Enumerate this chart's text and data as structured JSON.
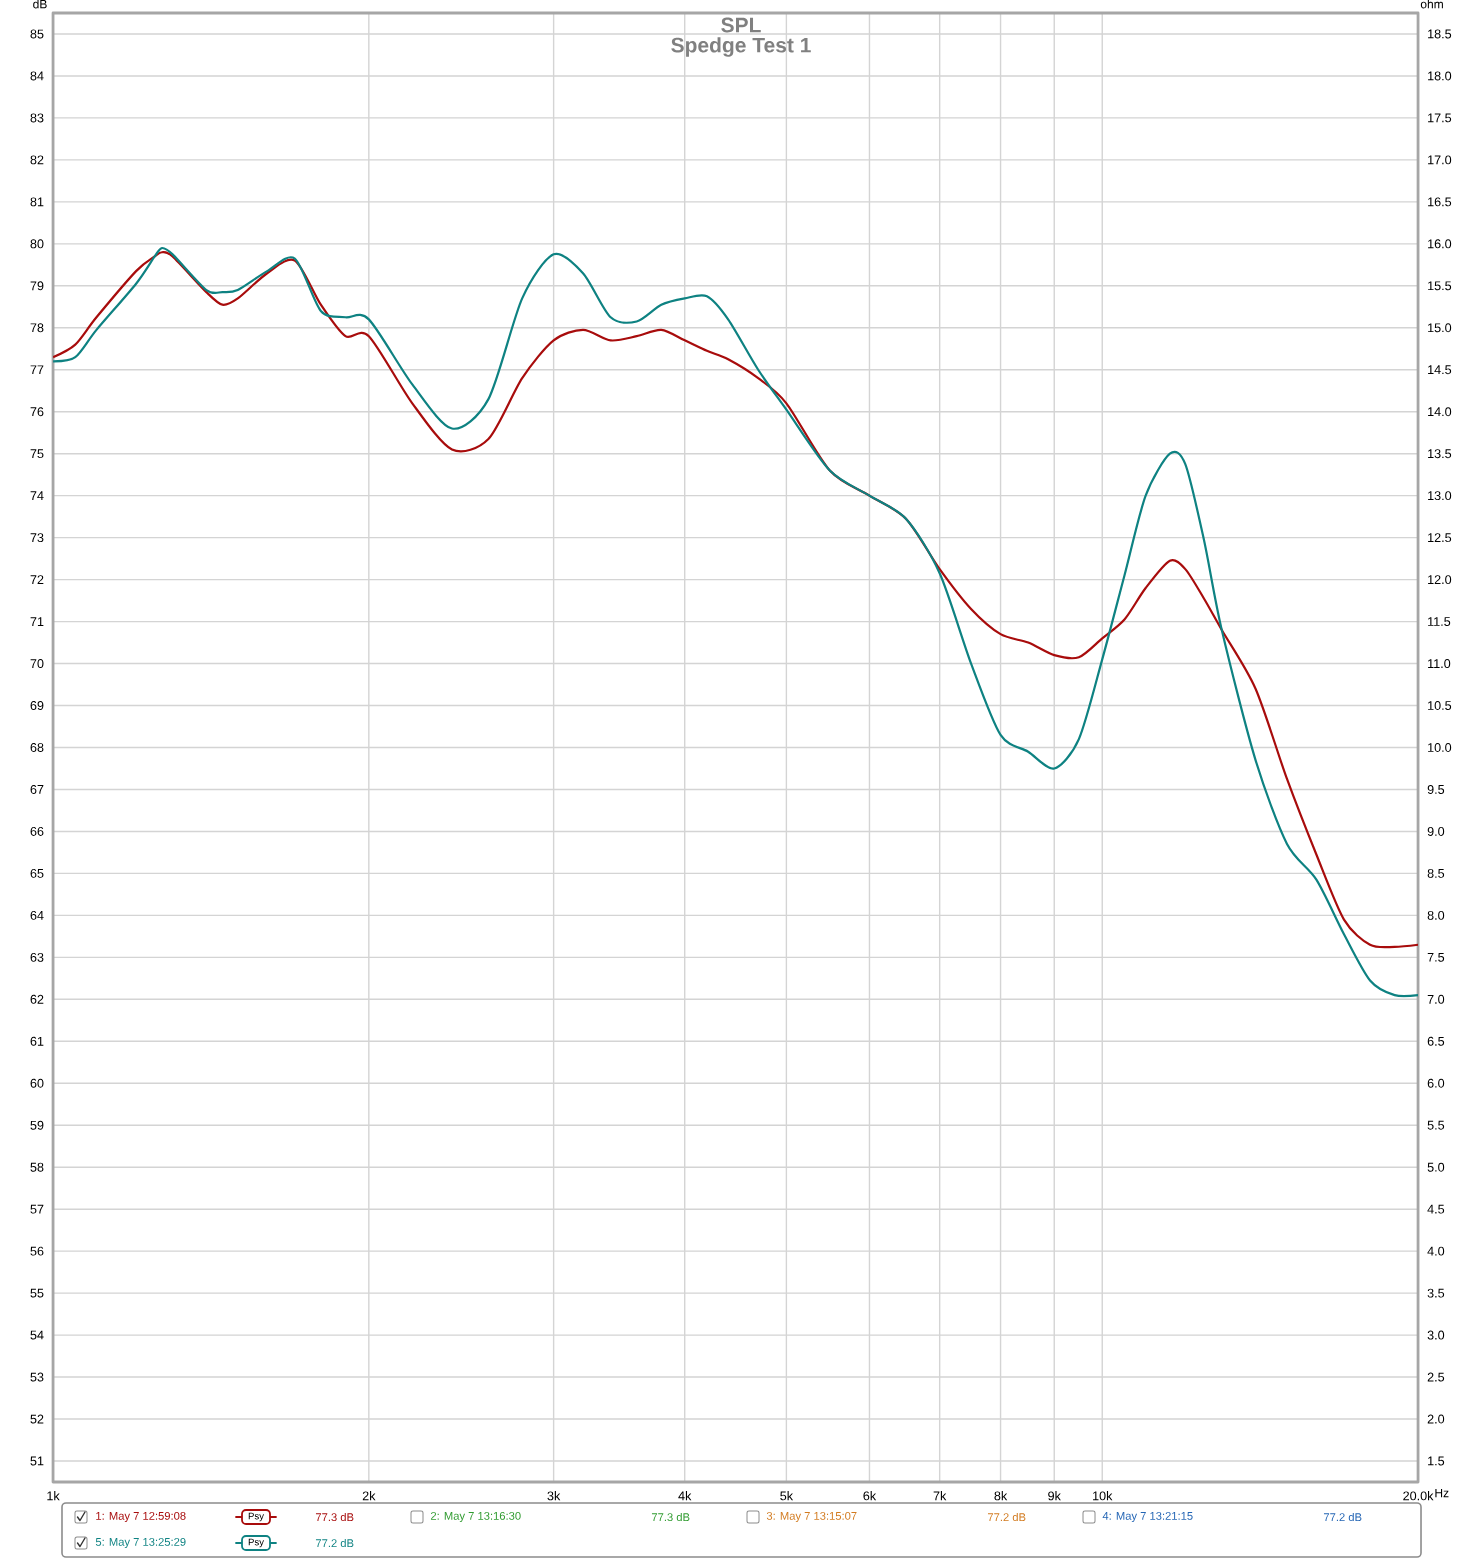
{
  "chart_data": {
    "type": "line",
    "title": "SPL",
    "subtitle": "Spedge Test 1",
    "ylabel": "dB",
    "y2label": "ohm",
    "log": "x",
    "grid": true,
    "legend": "bottom",
    "marker": "none",
    "line_style": "solid",
    "x": [
      1000,
      1050,
      1100,
      1200,
      1250,
      1270,
      1300,
      1400,
      1450,
      1500,
      1600,
      1700,
      1800,
      1900,
      2000,
      2200,
      2400,
      2600,
      2800,
      3000,
      3200,
      3400,
      3600,
      3800,
      4000,
      4200,
      4400,
      4700,
      5000,
      5500,
      6000,
      6500,
      7000,
      7500,
      8000,
      8500,
      9000,
      9500,
      10000,
      10500,
      11000,
      11600,
      12000,
      12500,
      13000,
      14000,
      15000,
      16000,
      17000,
      18000,
      19000,
      20000
    ],
    "xlim": [
      1000,
      20000
    ],
    "xticks": [
      {
        "value": 1000,
        "label": "1k"
      },
      {
        "value": 2000,
        "label": "2k"
      },
      {
        "value": 3000,
        "label": "3k"
      },
      {
        "value": 4000,
        "label": "4k"
      },
      {
        "value": 5000,
        "label": "5k"
      },
      {
        "value": 6000,
        "label": "6k"
      },
      {
        "value": 7000,
        "label": "7k"
      },
      {
        "value": 8000,
        "label": "8k"
      },
      {
        "value": 9000,
        "label": "9k"
      },
      {
        "value": 10000,
        "label": "10k"
      },
      {
        "value": 20000,
        "label": "20.0k"
      }
    ],
    "xlabel": "Hz",
    "ylim": [
      50.5,
      85.5
    ],
    "yticks": [
      51,
      52,
      53,
      54,
      55,
      56,
      57,
      58,
      59,
      60,
      61,
      62,
      63,
      64,
      65,
      66,
      67,
      68,
      69,
      70,
      71,
      72,
      73,
      74,
      75,
      76,
      77,
      78,
      79,
      80,
      81,
      82,
      83,
      84,
      85
    ],
    "y2lim": [
      1.25,
      18.75
    ],
    "y2ticks": [
      1.5,
      {
        "value": 2,
        "label": "2.0"
      },
      2.5,
      {
        "value": 3,
        "label": "3.0"
      },
      3.5,
      {
        "value": 4,
        "label": "4.0"
      },
      4.5,
      {
        "value": 5,
        "label": "5.0"
      },
      5.5,
      {
        "value": 6,
        "label": "6.0"
      },
      6.5,
      {
        "value": 7,
        "label": "7.0"
      },
      7.5,
      {
        "value": 8,
        "label": "8.0"
      },
      8.5,
      {
        "value": 9,
        "label": "9.0"
      },
      9.5,
      {
        "value": 10,
        "label": "10.0"
      },
      10.5,
      {
        "value": 11,
        "label": "11.0"
      },
      11.5,
      {
        "value": 12,
        "label": "12.0"
      },
      12.5,
      {
        "value": 13,
        "label": "13.0"
      },
      13.5,
      {
        "value": 14,
        "label": "14.0"
      },
      14.5,
      {
        "value": 15,
        "label": "15.0"
      },
      15.5,
      {
        "value": 16,
        "label": "16.0"
      },
      16.5,
      {
        "value": 17,
        "label": "17.0"
      },
      17.5,
      {
        "value": 18,
        "label": "18.0"
      },
      18.5
    ],
    "series": [
      {
        "name": "1: May 7 12:59:08",
        "color": "#a80c0c",
        "values": [
          77.3,
          77.6,
          78.25,
          79.35,
          79.7,
          79.8,
          79.7,
          78.85,
          78.55,
          78.7,
          79.3,
          79.6,
          78.55,
          77.8,
          77.8,
          76.2,
          75.1,
          75.35,
          76.8,
          77.7,
          77.95,
          77.7,
          77.8,
          77.95,
          77.7,
          77.45,
          77.25,
          76.8,
          76.2,
          74.6,
          74.0,
          73.45,
          72.25,
          71.3,
          70.7,
          70.5,
          70.2,
          70.15,
          70.6,
          71.05,
          71.8,
          72.45,
          72.25,
          71.55,
          70.8,
          69.4,
          67.25,
          65.45,
          63.9,
          63.3,
          63.25,
          63.3
        ]
      },
      {
        "name": "5: May 7 13:25:29",
        "color": "#0e8282",
        "values": [
          77.2,
          77.3,
          77.95,
          79.05,
          79.7,
          79.9,
          79.75,
          78.9,
          78.85,
          78.9,
          79.35,
          79.65,
          78.4,
          78.25,
          78.2,
          76.65,
          75.6,
          76.3,
          78.7,
          79.75,
          79.3,
          78.25,
          78.15,
          78.55,
          78.7,
          78.75,
          78.2,
          77.0,
          76.05,
          74.6,
          74.0,
          73.45,
          72.15,
          70.0,
          68.3,
          67.9,
          67.5,
          68.2,
          70.1,
          72.1,
          74.0,
          75.0,
          74.75,
          72.95,
          70.8,
          67.7,
          65.7,
          64.85,
          63.55,
          62.45,
          62.1,
          62.1
        ]
      }
    ],
    "annotations": [
      "Psy",
      "77.3 dB",
      "2: May 7 13:16:30",
      "77.3 dB",
      "3: May 7 13:15:07",
      "77.2 dB",
      "4: May 7 13:21:15",
      "77.2 dB",
      "Psy",
      "77.2 dB"
    ]
  }
}
